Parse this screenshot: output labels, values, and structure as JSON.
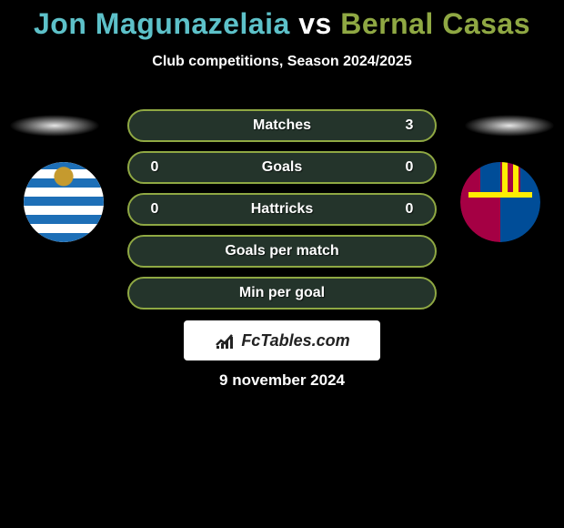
{
  "title": {
    "player1": "Jon Magunazelaia",
    "vs": " vs ",
    "player2": "Bernal Casas",
    "color1": "#5dc1c9",
    "color_vs": "#ffffff",
    "color2": "#8fa843"
  },
  "subtitle": "Club competitions, Season 2024/2025",
  "date": "9 november 2024",
  "watermark": "FcTables.com",
  "stats": {
    "rows": [
      {
        "label": "Matches",
        "left": "",
        "right": "3"
      },
      {
        "label": "Goals",
        "left": "0",
        "right": "0"
      },
      {
        "label": "Hattricks",
        "left": "0",
        "right": "0"
      },
      {
        "label": "Goals per match",
        "left": "",
        "right": ""
      },
      {
        "label": "Min per goal",
        "left": "",
        "right": ""
      }
    ],
    "border_color": "#8fa843",
    "fill_color": "#24342b",
    "text_color": "#ffffff"
  },
  "crests": {
    "left_team": "real-sociedad",
    "right_team": "barcelona"
  }
}
